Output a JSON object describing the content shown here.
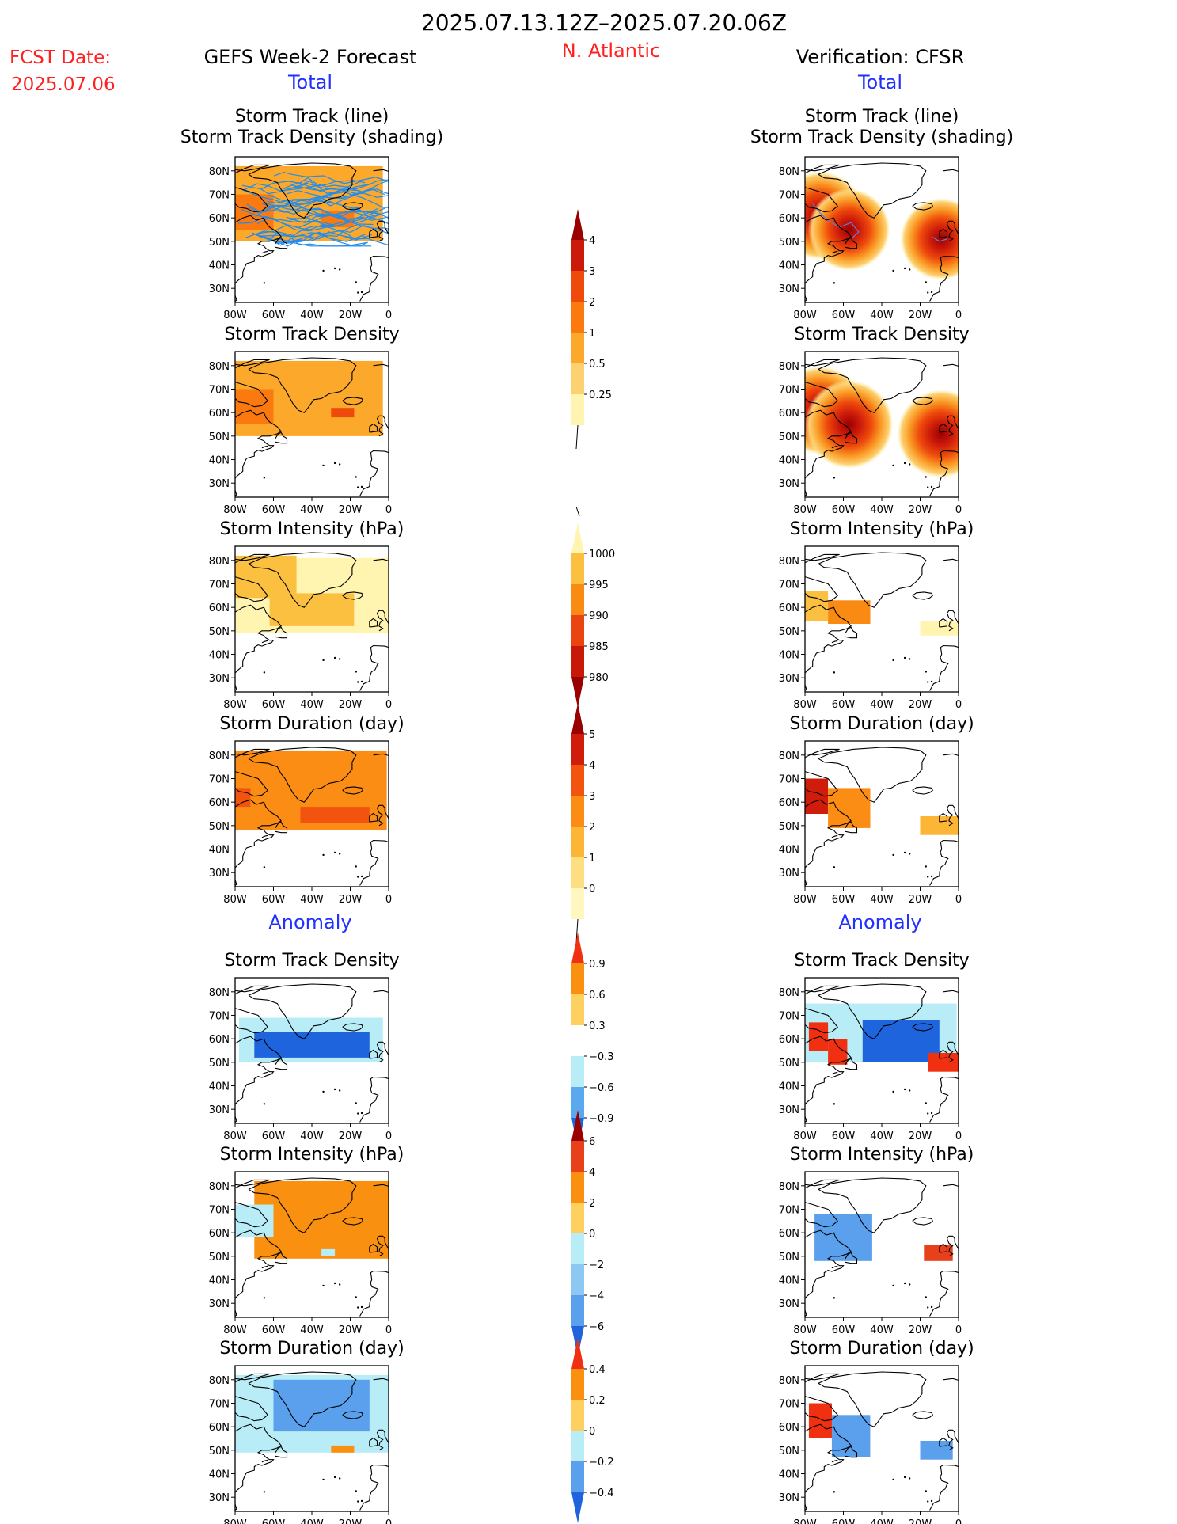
{
  "header": {
    "period": "2025.07.13.12Z–2025.07.20.06Z",
    "fcst_label": "FCST Date:",
    "fcst_date": "2025.07.06",
    "left_title": "GEFS Week-2 Forecast",
    "region": "N. Atlantic",
    "right_title": "Verification: CFSR"
  },
  "sections": {
    "total_label": "Total",
    "anomaly_label": "Anomaly"
  },
  "titles": {
    "track1": "Storm Track (line)",
    "track2": "Storm Track Density (shading)",
    "density": "Storm Track Density",
    "intensity": "Storm Intensity (hPa)",
    "duration": "Storm Duration (day)"
  },
  "axes": {
    "x_ticks": [
      "80W",
      "60W",
      "40W",
      "20W",
      "0"
    ],
    "y_ticks": [
      "80N",
      "70N",
      "60N",
      "50N",
      "40N",
      "30N"
    ],
    "lon_range": [
      -80,
      0
    ],
    "lat_range": [
      24,
      86
    ]
  },
  "colors": {
    "title_red": "#ff2020",
    "label_blue": "#2030ff",
    "track_line": "#1e8cf0",
    "coast": "#000000"
  },
  "colorbars": [
    {
      "id": "density",
      "labels": [
        "4",
        "3",
        "2",
        "1",
        "0.5",
        "0.25"
      ],
      "colors": [
        "#9a0000",
        "#cc1a0a",
        "#ee4a0c",
        "#fa7a10",
        "#fca82a",
        "#fdd070",
        "#fff4b0"
      ],
      "lower_open": false
    },
    {
      "id": "intensity",
      "labels": [
        "1000",
        "995",
        "990",
        "985",
        "980"
      ],
      "colors": [
        "#fff4b0",
        "#fcc040",
        "#f98a12",
        "#ea4410",
        "#c8180a",
        "#9a0000"
      ],
      "lower_open": true
    },
    {
      "id": "duration",
      "labels": [
        "5",
        "4",
        "3",
        "2",
        "1",
        "0"
      ],
      "colors": [
        "#9a0000",
        "#d01c0a",
        "#f25410",
        "#fb8c14",
        "#fcb534",
        "#fdde80",
        "#fff6c0"
      ],
      "lower_open": false
    },
    {
      "id": "anom-density",
      "labels": [
        "0.9",
        "0.6",
        "0.3",
        "−0.3",
        "−0.6",
        "−0.9"
      ],
      "colors": [
        "#f03010",
        "#f99010",
        "#fdd060",
        "#ffffff",
        "#b8ecf6",
        "#5aa8ee",
        "#1e64dc"
      ],
      "lower_open": true
    },
    {
      "id": "anom-intensity",
      "labels": [
        "6",
        "4",
        "2",
        "0",
        "−2",
        "−4",
        "−6"
      ],
      "colors": [
        "#9a0000",
        "#e8401a",
        "#f99010",
        "#fdd060",
        "#b8ecf6",
        "#8cc8f2",
        "#5aa0ec",
        "#1e64dc"
      ],
      "lower_open": true
    },
    {
      "id": "anom-duration",
      "labels": [
        "0.4",
        "0.2",
        "0",
        "−0.2",
        "−0.4"
      ],
      "colors": [
        "#f03010",
        "#f99010",
        "#fdd060",
        "#b8ecf6",
        "#5aa0ec",
        "#1e64dc"
      ],
      "lower_open": true
    }
  ],
  "chart_data": [
    {
      "type": "heatmap",
      "panel": "GEFS Week-2 Forecast - Total - Storm Track (line) / Storm Track Density (shading)",
      "units": "count",
      "lon_range": [
        -80,
        0
      ],
      "lat_range": [
        24,
        86
      ],
      "regions": [
        {
          "lon": [
            -80,
            -3
          ],
          "lat": [
            50,
            82
          ],
          "value": 0.5
        },
        {
          "lon": [
            -80,
            -60
          ],
          "lat": [
            55,
            70
          ],
          "value": 1
        },
        {
          "lon": [
            -35,
            -18
          ],
          "lat": [
            56,
            63
          ],
          "value": 1
        }
      ]
    },
    {
      "type": "heatmap",
      "panel": "GEFS Week-2 Forecast - Total - Storm Track Density",
      "units": "count",
      "lon_range": [
        -80,
        0
      ],
      "lat_range": [
        24,
        86
      ],
      "regions": [
        {
          "lon": [
            -80,
            -3
          ],
          "lat": [
            50,
            82
          ],
          "value": 0.5
        },
        {
          "lon": [
            -80,
            -60
          ],
          "lat": [
            55,
            70
          ],
          "value": 1
        },
        {
          "lon": [
            -30,
            -18
          ],
          "lat": [
            58,
            62
          ],
          "value": 2
        }
      ]
    },
    {
      "type": "heatmap",
      "panel": "GEFS Week-2 Forecast - Total - Storm Intensity (hPa)",
      "units": "hPa",
      "lon_range": [
        -80,
        0
      ],
      "lat_range": [
        24,
        86
      ],
      "regions": [
        {
          "lon": [
            -80,
            0
          ],
          "lat": [
            49,
            81
          ],
          "value": 1000
        },
        {
          "lon": [
            -80,
            -48
          ],
          "lat": [
            64,
            82
          ],
          "value": 995
        },
        {
          "lon": [
            -62,
            -18
          ],
          "lat": [
            52,
            66
          ],
          "value": 995
        }
      ]
    },
    {
      "type": "heatmap",
      "panel": "GEFS Week-2 Forecast - Total - Storm Duration (day)",
      "units": "day",
      "lon_range": [
        -80,
        0
      ],
      "lat_range": [
        24,
        86
      ],
      "regions": [
        {
          "lon": [
            -80,
            -1
          ],
          "lat": [
            48,
            82
          ],
          "value": 2
        },
        {
          "lon": [
            -46,
            -10
          ],
          "lat": [
            51,
            58
          ],
          "value": 3
        },
        {
          "lon": [
            -80,
            -72
          ],
          "lat": [
            58,
            66
          ],
          "value": 3
        }
      ]
    },
    {
      "type": "heatmap",
      "panel": "Verification: CFSR - Total - Storm Track (line) / Storm Track Density (shading)",
      "units": "count",
      "lon_range": [
        -80,
        0
      ],
      "lat_range": [
        24,
        86
      ],
      "centers": [
        {
          "lon": -72,
          "lat": 61,
          "peak": 4
        },
        {
          "lon": -57,
          "lat": 55,
          "peak": 3
        },
        {
          "lon": -9,
          "lat": 51,
          "peak": 3
        }
      ]
    },
    {
      "type": "heatmap",
      "panel": "Verification: CFSR - Total - Storm Track Density",
      "units": "count",
      "lon_range": [
        -80,
        0
      ],
      "lat_range": [
        24,
        86
      ],
      "centers": [
        {
          "lon": -72,
          "lat": 61,
          "peak": 4
        },
        {
          "lon": -57,
          "lat": 55,
          "peak": 4
        },
        {
          "lon": -9,
          "lat": 51,
          "peak": 4
        }
      ]
    },
    {
      "type": "heatmap",
      "panel": "Verification: CFSR - Total - Storm Intensity (hPa)",
      "units": "hPa",
      "lon_range": [
        -80,
        0
      ],
      "lat_range": [
        24,
        86
      ],
      "regions": [
        {
          "lon": [
            -80,
            -68
          ],
          "lat": [
            54,
            67
          ],
          "value": 995
        },
        {
          "lon": [
            -68,
            -46
          ],
          "lat": [
            53,
            63
          ],
          "value": 990
        },
        {
          "lon": [
            -20,
            0
          ],
          "lat": [
            48,
            54
          ],
          "value": 1000
        }
      ]
    },
    {
      "type": "heatmap",
      "panel": "Verification: CFSR - Total - Storm Duration (day)",
      "units": "day",
      "lon_range": [
        -80,
        0
      ],
      "lat_range": [
        24,
        86
      ],
      "regions": [
        {
          "lon": [
            -80,
            -68
          ],
          "lat": [
            55,
            70
          ],
          "value": 4
        },
        {
          "lon": [
            -68,
            -46
          ],
          "lat": [
            49,
            66
          ],
          "value": 2
        },
        {
          "lon": [
            -20,
            0
          ],
          "lat": [
            46,
            54
          ],
          "value": 1
        }
      ]
    },
    {
      "type": "heatmap",
      "panel": "GEFS Week-2 Forecast - Anomaly - Storm Track Density",
      "units": "count",
      "lon_range": [
        -80,
        0
      ],
      "lat_range": [
        24,
        86
      ],
      "regions": [
        {
          "lon": [
            -78,
            -3
          ],
          "lat": [
            50,
            69
          ],
          "value": -0.3
        },
        {
          "lon": [
            -70,
            -10
          ],
          "lat": [
            52,
            63
          ],
          "value": -0.9
        }
      ]
    },
    {
      "type": "heatmap",
      "panel": "GEFS Week-2 Forecast - Anomaly - Storm Intensity (hPa)",
      "units": "hPa",
      "lon_range": [
        -80,
        0
      ],
      "lat_range": [
        24,
        86
      ],
      "regions": [
        {
          "lon": [
            -70,
            0
          ],
          "lat": [
            49,
            82
          ],
          "value": 2
        },
        {
          "lon": [
            -80,
            -60
          ],
          "lat": [
            58,
            72
          ],
          "value": -2
        },
        {
          "lon": [
            -35,
            -28
          ],
          "lat": [
            50,
            53
          ],
          "value": -2
        }
      ]
    },
    {
      "type": "heatmap",
      "panel": "GEFS Week-2 Forecast - Anomaly - Storm Duration (day)",
      "units": "day",
      "lon_range": [
        -80,
        0
      ],
      "lat_range": [
        24,
        86
      ],
      "regions": [
        {
          "lon": [
            -80,
            0
          ],
          "lat": [
            49,
            82
          ],
          "value": -0.2
        },
        {
          "lon": [
            -60,
            -10
          ],
          "lat": [
            58,
            80
          ],
          "value": -0.4
        },
        {
          "lon": [
            -30,
            -18
          ],
          "lat": [
            49,
            52
          ],
          "value": 0.2
        }
      ]
    },
    {
      "type": "heatmap",
      "panel": "Verification: CFSR - Anomaly - Storm Track Density",
      "units": "count",
      "lon_range": [
        -80,
        0
      ],
      "lat_range": [
        24,
        86
      ],
      "regions": [
        {
          "lon": [
            -80,
            -1
          ],
          "lat": [
            50,
            75
          ],
          "value": -0.3
        },
        {
          "lon": [
            -50,
            -10
          ],
          "lat": [
            50,
            68
          ],
          "value": -0.9
        },
        {
          "lon": [
            -78,
            -68
          ],
          "lat": [
            55,
            67
          ],
          "value": 0.9
        },
        {
          "lon": [
            -68,
            -58
          ],
          "lat": [
            49,
            60
          ],
          "value": 0.9
        },
        {
          "lon": [
            -16,
            0
          ],
          "lat": [
            46,
            54
          ],
          "value": 0.9
        }
      ]
    },
    {
      "type": "heatmap",
      "panel": "Verification: CFSR - Anomaly - Storm Intensity (hPa)",
      "units": "hPa",
      "lon_range": [
        -80,
        0
      ],
      "lat_range": [
        24,
        86
      ],
      "regions": [
        {
          "lon": [
            -75,
            -45
          ],
          "lat": [
            48,
            68
          ],
          "value": -4
        },
        {
          "lon": [
            -18,
            -3
          ],
          "lat": [
            48,
            55
          ],
          "value": 4
        }
      ]
    },
    {
      "type": "heatmap",
      "panel": "Verification: CFSR - Anomaly - Storm Duration (day)",
      "units": "day",
      "lon_range": [
        -80,
        0
      ],
      "lat_range": [
        24,
        86
      ],
      "regions": [
        {
          "lon": [
            -78,
            -66
          ],
          "lat": [
            55,
            70
          ],
          "value": 0.4
        },
        {
          "lon": [
            -66,
            -46
          ],
          "lat": [
            47,
            65
          ],
          "value": -0.4
        },
        {
          "lon": [
            -20,
            -3
          ],
          "lat": [
            46,
            54
          ],
          "value": -0.4
        }
      ]
    }
  ]
}
